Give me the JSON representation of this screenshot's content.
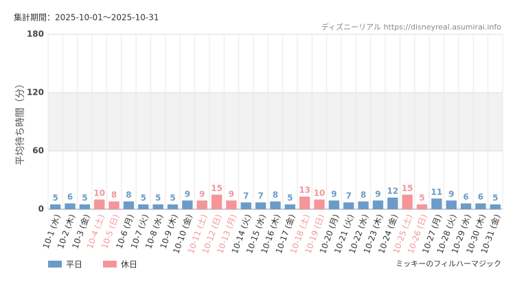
{
  "chart_data": {
    "type": "bar",
    "title": "集計期間：2025-10-01～2025-10-31",
    "source": "ディズニーリアル https://disneyreal.asumirai.info",
    "attraction": "ミッキーのフィルハーマジック",
    "y_label": "平均待ち時間（分）",
    "categories": [
      "10-1 (水)",
      "10-2 (木)",
      "10-3 (金)",
      "10-4 (土)",
      "10-5 (日)",
      "10-6 (月)",
      "10-7 (火)",
      "10-8 (水)",
      "10-9 (木)",
      "10-10 (金)",
      "10-11 (土)",
      "10-12 (日)",
      "10-13 (月)",
      "10-14 (火)",
      "10-15 (水)",
      "10-16 (木)",
      "10-17 (金)",
      "10-18 (土)",
      "10-19 (日)",
      "10-20 (月)",
      "10-21 (火)",
      "10-22 (水)",
      "10-23 (木)",
      "10-24 (金)",
      "10-25 (土)",
      "10-26 (日)",
      "10-27 (月)",
      "10-28 (火)",
      "10-29 (水)",
      "10-30 (木)",
      "10-31 (金)"
    ],
    "series": [
      {
        "name": "平日",
        "color": "#6b9bc9",
        "values": [
          5,
          6,
          5,
          null,
          null,
          8,
          5,
          5,
          5,
          9,
          null,
          null,
          null,
          7,
          7,
          8,
          5,
          null,
          null,
          9,
          7,
          8,
          9,
          12,
          null,
          null,
          11,
          9,
          6,
          6,
          5
        ]
      },
      {
        "name": "休日",
        "color": "#f4959a",
        "values": [
          null,
          null,
          null,
          10,
          8,
          null,
          null,
          null,
          null,
          null,
          9,
          15,
          9,
          null,
          null,
          null,
          null,
          13,
          10,
          null,
          null,
          null,
          null,
          null,
          15,
          5,
          null,
          null,
          null,
          null,
          null
        ]
      }
    ],
    "ylim": [
      0,
      180
    ],
    "yticks": [
      0,
      60,
      120,
      180
    ],
    "shaded_range": [
      60,
      120
    ],
    "grid": true,
    "legend": "bottom-left"
  }
}
